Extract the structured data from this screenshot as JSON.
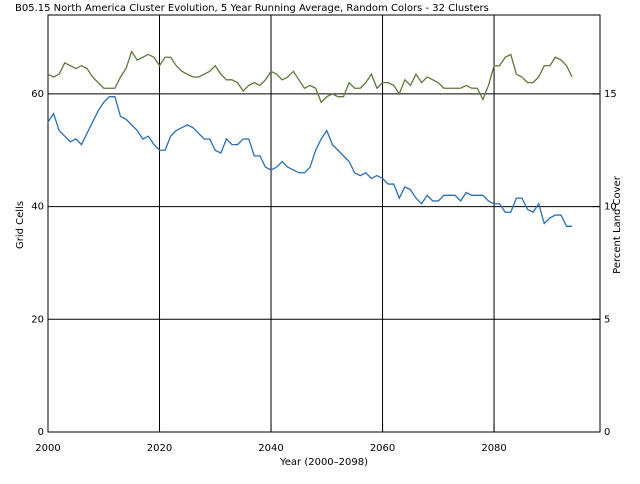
{
  "chart_data": {
    "type": "line",
    "title": "B05.15 North America Cluster Evolution, 5 Year Running Average, Random Colors - 32 Clusters",
    "x_label": "Year (2000–2098)",
    "y_label": "Grid Cells",
    "y2_label": "Percent Land Cover",
    "x": [
      2000,
      2001,
      2002,
      2003,
      2004,
      2005,
      2006,
      2007,
      2008,
      2009,
      2010,
      2011,
      2012,
      2013,
      2014,
      2015,
      2016,
      2017,
      2018,
      2019,
      2020,
      2021,
      2022,
      2023,
      2024,
      2025,
      2026,
      2027,
      2028,
      2029,
      2030,
      2031,
      2032,
      2033,
      2034,
      2035,
      2036,
      2037,
      2038,
      2039,
      2040,
      2041,
      2042,
      2043,
      2044,
      2045,
      2046,
      2047,
      2048,
      2049,
      2050,
      2051,
      2052,
      2053,
      2054,
      2055,
      2056,
      2057,
      2058,
      2059,
      2060,
      2061,
      2062,
      2063,
      2064,
      2065,
      2066,
      2067,
      2068,
      2069,
      2070,
      2071,
      2072,
      2073,
      2074,
      2075,
      2076,
      2077,
      2078,
      2079,
      2080,
      2081,
      2082,
      2083,
      2084,
      2085,
      2086,
      2087,
      2088,
      2089,
      2090,
      2091,
      2092,
      2093,
      2094
    ],
    "series": [
      {
        "color": "#2a6fb5",
        "values": [
          55,
          56.5,
          53.5,
          52.5,
          51.5,
          52,
          51,
          53,
          55,
          57,
          58.5,
          59.5,
          59.5,
          56,
          55.5,
          54.5,
          53.5,
          52,
          52.5,
          51,
          50,
          50,
          52.5,
          53.5,
          54,
          54.5,
          54,
          53,
          52,
          52,
          50,
          49.5,
          52,
          51,
          51,
          52,
          52,
          49,
          49,
          47,
          46.5,
          47,
          48,
          47,
          46.5,
          46,
          46,
          47,
          50,
          52,
          53.5,
          51,
          50,
          49,
          48,
          46,
          45.5,
          46,
          45,
          45.5,
          45,
          44,
          44,
          41.5,
          43.5,
          43,
          41.5,
          40.5,
          42,
          41,
          41,
          42,
          42,
          42,
          41,
          42.5,
          42,
          42,
          42,
          41,
          40.5,
          40.5,
          39,
          39,
          41.5,
          41.5,
          39.5,
          39,
          40.5,
          37,
          38,
          38.5,
          38.5,
          36.5,
          36.5
        ]
      },
      {
        "color": "#5e7a3a",
        "values": [
          63.5,
          63,
          63.5,
          65.5,
          65,
          64.5,
          65,
          64.5,
          63,
          62,
          61,
          61,
          61,
          63,
          64.5,
          67.5,
          66,
          66.5,
          67,
          66.5,
          65,
          66.5,
          66.5,
          65,
          64,
          63.5,
          63,
          63,
          63.5,
          64,
          65,
          63.5,
          62.5,
          62.5,
          62,
          60.5,
          61.5,
          62,
          61.5,
          62.5,
          64,
          63.5,
          62.5,
          63,
          64,
          62.5,
          61,
          61.5,
          61,
          58.5,
          59.5,
          60,
          59.5,
          59.5,
          62,
          61,
          61,
          62,
          63.5,
          61,
          62,
          62,
          61.5,
          60,
          62.5,
          61.5,
          63.5,
          62,
          63,
          62.5,
          62,
          61,
          61,
          61,
          61,
          61.5,
          61,
          61,
          59,
          61.5,
          65,
          65,
          66.5,
          67,
          63.5,
          63,
          62,
          62,
          63,
          65,
          65,
          66.5,
          66,
          65,
          63
        ]
      }
    ],
    "xlim": [
      2000,
      2099
    ],
    "xticks": [
      2000,
      2020,
      2040,
      2060,
      2080
    ],
    "ylim": [
      0,
      74
    ],
    "yticks": [
      0,
      20,
      40,
      60
    ],
    "y2lim": [
      0,
      18.5
    ],
    "y2ticks": [
      0,
      5,
      10,
      15
    ],
    "grid": true
  }
}
